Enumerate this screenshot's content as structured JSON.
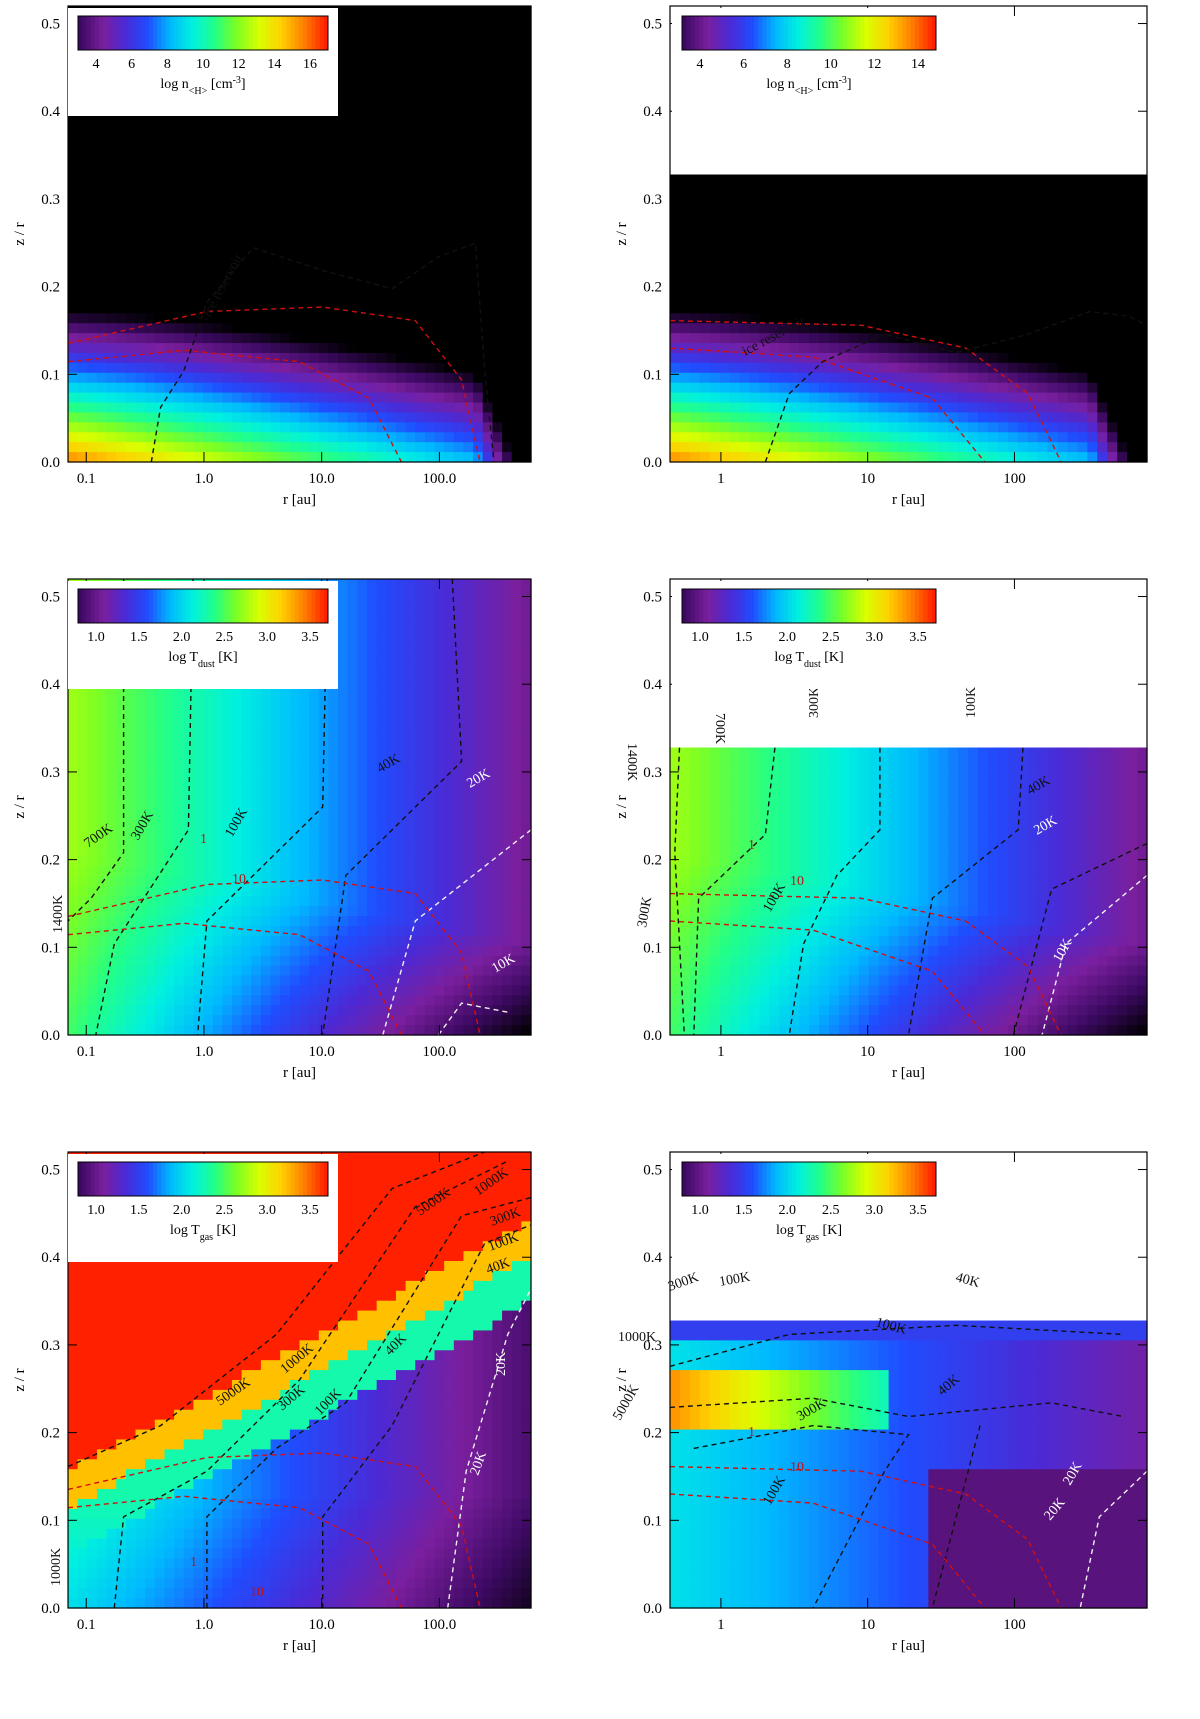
{
  "colormap": [
    "#000000",
    "#3d0a63",
    "#7a1f9e",
    "#4b2ad6",
    "#1f4dff",
    "#00b8ff",
    "#00f0e0",
    "#22ff88",
    "#7dff22",
    "#d9ff00",
    "#ffd000",
    "#ff8000",
    "#ff2000"
  ],
  "chart_data": [
    {
      "type": "heatmap",
      "panel": "top-left",
      "xlabel": "r [au]",
      "ylabel": "z / r",
      "xscale": "log",
      "xlim": [
        0.07,
        600
      ],
      "ylim": [
        0.0,
        0.52
      ],
      "xticks": [
        "0.1",
        "1.0",
        "10.0",
        "100.0"
      ],
      "yticks": [
        "0.0",
        "0.1",
        "0.2",
        "0.3",
        "0.4",
        "0.5"
      ],
      "colorbar": {
        "label": "log n<H> [cm-3]",
        "ticks": [
          "4",
          "6",
          "8",
          "10",
          "12",
          "14",
          "16"
        ]
      },
      "annotations": [
        "ice reservoir"
      ]
    },
    {
      "type": "heatmap",
      "panel": "top-right",
      "xlabel": "r [au]",
      "ylabel": "z / r",
      "xscale": "log",
      "xlim": [
        0.45,
        800
      ],
      "ylim": [
        0.0,
        0.52
      ],
      "xticks": [
        "1",
        "10",
        "100"
      ],
      "yticks": [
        "0.0",
        "0.1",
        "0.2",
        "0.3",
        "0.4",
        "0.5"
      ],
      "colorbar": {
        "label": "log n<H> [cm-3]",
        "ticks": [
          "4",
          "6",
          "8",
          "10",
          "12",
          "14"
        ]
      },
      "annotations": [
        "ice reservoir"
      ]
    },
    {
      "type": "heatmap",
      "panel": "middle-left",
      "xlabel": "r [au]",
      "ylabel": "z / r",
      "xscale": "log",
      "xlim": [
        0.07,
        600
      ],
      "ylim": [
        0.0,
        0.52
      ],
      "xticks": [
        "0.1",
        "1.0",
        "10.0",
        "100.0"
      ],
      "yticks": [
        "0.0",
        "0.1",
        "0.2",
        "0.3",
        "0.4",
        "0.5"
      ],
      "colorbar": {
        "label": "log Tdust [K]",
        "ticks": [
          "1.0",
          "1.5",
          "2.0",
          "2.5",
          "3.0",
          "3.5"
        ]
      },
      "contour_labels": [
        "700K",
        "300K",
        "100K",
        "40K",
        "20K",
        "10K",
        "1400K",
        "1",
        "10"
      ]
    },
    {
      "type": "heatmap",
      "panel": "middle-right",
      "xlabel": "r [au]",
      "ylabel": "z / r",
      "xscale": "log",
      "xlim": [
        0.45,
        800
      ],
      "ylim": [
        0.0,
        0.52
      ],
      "xticks": [
        "1",
        "10",
        "100"
      ],
      "yticks": [
        "0.0",
        "0.1",
        "0.2",
        "0.3",
        "0.4",
        "0.5"
      ],
      "colorbar": {
        "label": "log Tdust [K]",
        "ticks": [
          "1.0",
          "1.5",
          "2.0",
          "2.5",
          "3.0",
          "3.5"
        ]
      },
      "contour_labels": [
        "1400K",
        "700K",
        "300K",
        "100K",
        "40K",
        "20K",
        "10K",
        "300K",
        "100K",
        "1",
        "10"
      ]
    },
    {
      "type": "heatmap",
      "panel": "bottom-left",
      "xlabel": "r [au]",
      "ylabel": "z / r",
      "xscale": "log",
      "xlim": [
        0.07,
        600
      ],
      "ylim": [
        0.0,
        0.52
      ],
      "xticks": [
        "0.1",
        "1.0",
        "10.0",
        "100.0"
      ],
      "yticks": [
        "0.0",
        "0.1",
        "0.2",
        "0.3",
        "0.4",
        "0.5"
      ],
      "colorbar": {
        "label": "log Tgas [K]",
        "ticks": [
          "1.0",
          "1.5",
          "2.0",
          "2.5",
          "3.0",
          "3.5"
        ]
      },
      "contour_labels": [
        "5000K",
        "1000K",
        "300K",
        "100K",
        "40K",
        "20K",
        "5000K",
        "1000K",
        "300K",
        "100K",
        "40K",
        "20K",
        "1000K",
        "1",
        "10"
      ]
    },
    {
      "type": "heatmap",
      "panel": "bottom-right",
      "xlabel": "r [au]",
      "ylabel": "z / r",
      "xscale": "log",
      "xlim": [
        0.45,
        800
      ],
      "ylim": [
        0.0,
        0.52
      ],
      "xticks": [
        "1",
        "10",
        "100"
      ],
      "yticks": [
        "0.0",
        "0.1",
        "0.2",
        "0.3",
        "0.4",
        "0.5"
      ],
      "colorbar": {
        "label": "log Tgas [K]",
        "ticks": [
          "1.0",
          "1.5",
          "2.0",
          "2.5",
          "3.0",
          "3.5"
        ]
      },
      "contour_labels": [
        "300K",
        "100K",
        "40K",
        "100K",
        "1000K",
        "5000K",
        "300K",
        "40K",
        "100K",
        "20K",
        "20K",
        "1",
        "10"
      ]
    }
  ],
  "ui": {
    "cb_label_n_main": "log n",
    "cb_label_n_sub": "<H>",
    "cb_label_n_unit": " [cm",
    "cb_label_n_exp": "-3",
    "cb_label_n_close": "]",
    "cb_label_T_main": "log T",
    "cb_label_dust_sub": "dust",
    "cb_label_gas_sub": "gas",
    "cb_label_T_unit": " [K]",
    "ice": "ice reservoir"
  }
}
